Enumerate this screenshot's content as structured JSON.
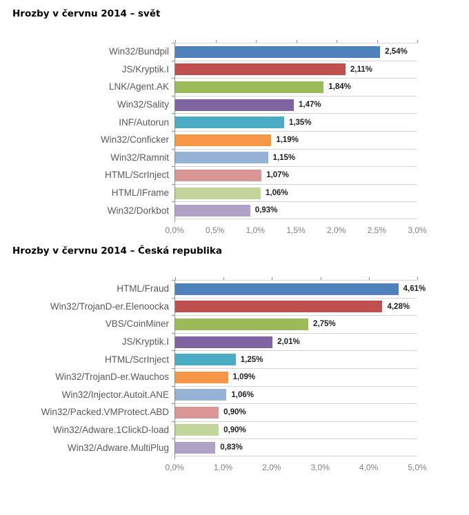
{
  "style": {
    "background": "#FFFFFF",
    "axis_line_color": "#8C8C8C",
    "separator_line_color": "#D3D3D3",
    "category_label_color": "#595959",
    "value_label_color": "#1F1F1F",
    "tick_label_color": "#7F7F7F"
  },
  "chart_data": [
    {
      "type": "bar",
      "orientation": "horizontal",
      "title": "Hrozby v červnu 2014 – svět",
      "categories": [
        "Win32/Bundpil",
        "JS/Kryptik.I",
        "LNK/Agent.AK",
        "Win32/Sality",
        "INF/Autorun",
        "Win32/Conficker",
        "Win32/Ramnit",
        "HTML/ScrInject",
        "HTML/IFrame",
        "Win32/Dorkbot"
      ],
      "values": [
        2.54,
        2.11,
        1.84,
        1.47,
        1.35,
        1.19,
        1.15,
        1.07,
        1.06,
        0.93
      ],
      "value_labels": [
        "2,54%",
        "2,11%",
        "1,84%",
        "1,47%",
        "1,35%",
        "1,19%",
        "1,15%",
        "1,07%",
        "1,06%",
        "0,93%"
      ],
      "bar_colors": [
        "#4F81BD",
        "#C0504D",
        "#9BBB59",
        "#8064A2",
        "#4BACC6",
        "#F79646",
        "#95B3D7",
        "#D99694",
        "#C2D69B",
        "#B2A1C7"
      ],
      "xlabel": "",
      "ylabel": "",
      "xlim": [
        0,
        3
      ],
      "xticks": [
        {
          "value": 0,
          "label": "0,0%"
        },
        {
          "value": 0.5,
          "label": "0,5%"
        },
        {
          "value": 1,
          "label": "1,0%"
        },
        {
          "value": 1.5,
          "label": "1,5%"
        },
        {
          "value": 2,
          "label": "2,0%"
        },
        {
          "value": 2.5,
          "label": "2,5%"
        },
        {
          "value": 3,
          "label": "3,0%"
        }
      ],
      "grid": "category-separator-lines",
      "legend": "none"
    },
    {
      "type": "bar",
      "orientation": "horizontal",
      "title": "Hrozby v červnu 2014 – Česká republika",
      "categories": [
        "HTML/Fraud",
        "Win32/TrojanD-er.Elenoocka",
        "VBS/CoinMiner",
        "JS/Kryptik.I",
        "HTML/ScrInject",
        "Win32/TrojanD-er.Wauchos",
        "Win32/Injector.Autoit.ANE",
        "Win32/Packed.VMProtect.ABD",
        "Win32/Adware.1ClickD-load",
        "Win32/Adware.MultiPlug"
      ],
      "values": [
        4.61,
        4.28,
        2.75,
        2.01,
        1.25,
        1.09,
        1.06,
        0.9,
        0.9,
        0.83
      ],
      "value_labels": [
        "4,61%",
        "4,28%",
        "2,75%",
        "2,01%",
        "1,25%",
        "1,09%",
        "1,06%",
        "0,90%",
        "0,90%",
        "0,83%"
      ],
      "bar_colors": [
        "#4F81BD",
        "#C0504D",
        "#9BBB59",
        "#8064A2",
        "#4BACC6",
        "#F79646",
        "#95B3D7",
        "#D99694",
        "#C2D69B",
        "#B2A1C7"
      ],
      "xlabel": "",
      "ylabel": "",
      "xlim": [
        0,
        5
      ],
      "xticks": [
        {
          "value": 0,
          "label": "0,0%"
        },
        {
          "value": 1,
          "label": "1,0%"
        },
        {
          "value": 2,
          "label": "2,0%"
        },
        {
          "value": 3,
          "label": "3,0%"
        },
        {
          "value": 4,
          "label": "4,0%"
        },
        {
          "value": 5,
          "label": "5,0%"
        }
      ],
      "grid": "category-separator-lines",
      "legend": "none"
    }
  ]
}
